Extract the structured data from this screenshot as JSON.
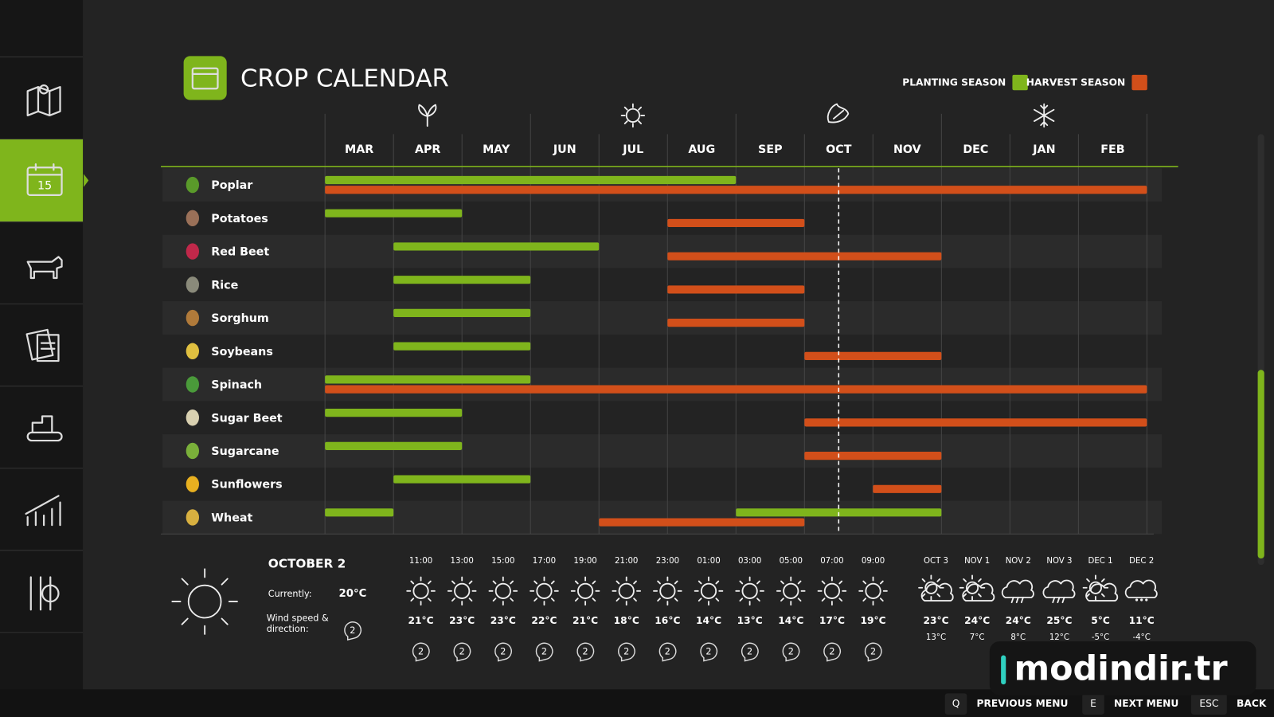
{
  "header": {
    "title": "CROP CALENDAR"
  },
  "legend": {
    "planting": {
      "label": "PLANTING SEASON",
      "color": "#7fb51c"
    },
    "harvest": {
      "label": "HARVEST SEASON",
      "color": "#d24f1a"
    }
  },
  "calendar": {
    "months": [
      "MAR",
      "APR",
      "MAY",
      "JUN",
      "JUL",
      "AUG",
      "SEP",
      "OCT",
      "NOV",
      "DEC",
      "JAN",
      "FEB"
    ],
    "today": 7.5,
    "crops": [
      {
        "name": "Poplar",
        "planting": [
          [
            0,
            5
          ]
        ],
        "harvest": [
          [
            0,
            11
          ]
        ]
      },
      {
        "name": "Potatoes",
        "planting": [
          [
            0,
            1
          ]
        ],
        "harvest": [
          [
            5,
            6
          ]
        ]
      },
      {
        "name": "Red Beet",
        "planting": [
          [
            1,
            3
          ]
        ],
        "harvest": [
          [
            5,
            8
          ]
        ]
      },
      {
        "name": "Rice",
        "planting": [
          [
            1,
            2
          ]
        ],
        "harvest": [
          [
            5,
            6
          ]
        ]
      },
      {
        "name": "Sorghum",
        "planting": [
          [
            1,
            2
          ]
        ],
        "harvest": [
          [
            5,
            6
          ]
        ]
      },
      {
        "name": "Soybeans",
        "planting": [
          [
            1,
            2
          ]
        ],
        "harvest": [
          [
            7,
            8
          ]
        ]
      },
      {
        "name": "Spinach",
        "planting": [
          [
            0,
            2
          ]
        ],
        "harvest": [
          [
            0,
            11
          ]
        ]
      },
      {
        "name": "Sugar Beet",
        "planting": [
          [
            0,
            1
          ]
        ],
        "harvest": [
          [
            7,
            11
          ]
        ]
      },
      {
        "name": "Sugarcane",
        "planting": [
          [
            0,
            1
          ]
        ],
        "harvest": [
          [
            7,
            8
          ]
        ]
      },
      {
        "name": "Sunflowers",
        "planting": [
          [
            1,
            2
          ]
        ],
        "harvest": [
          [
            8,
            8
          ]
        ]
      },
      {
        "name": "Wheat",
        "planting": [
          [
            0,
            0
          ],
          [
            6,
            8
          ]
        ],
        "harvest": [
          [
            4,
            6
          ]
        ]
      }
    ]
  },
  "weather": {
    "date": "OCTOBER 2",
    "current_label": "Currently:",
    "current_temp": "20°C",
    "wind_label": "Wind speed & direction:",
    "wind": "2",
    "hourly": [
      {
        "time": "11:00",
        "icon": "sunny",
        "temp": "21°C",
        "wind": "2"
      },
      {
        "time": "13:00",
        "icon": "sunny",
        "temp": "23°C",
        "wind": "2"
      },
      {
        "time": "15:00",
        "icon": "sunny",
        "temp": "23°C",
        "wind": "2"
      },
      {
        "time": "17:00",
        "icon": "sunny",
        "temp": "22°C",
        "wind": "2"
      },
      {
        "time": "19:00",
        "icon": "sunny",
        "temp": "21°C",
        "wind": "2"
      },
      {
        "time": "21:00",
        "icon": "sunny",
        "temp": "18°C",
        "wind": "2"
      },
      {
        "time": "23:00",
        "icon": "sunny",
        "temp": "16°C",
        "wind": "2"
      },
      {
        "time": "01:00",
        "icon": "sunny",
        "temp": "14°C",
        "wind": "2"
      },
      {
        "time": "03:00",
        "icon": "sunny",
        "temp": "13°C",
        "wind": "2"
      },
      {
        "time": "05:00",
        "icon": "sunny",
        "temp": "14°C",
        "wind": "2"
      },
      {
        "time": "07:00",
        "icon": "sunny",
        "temp": "17°C",
        "wind": "2"
      },
      {
        "time": "09:00",
        "icon": "sunny",
        "temp": "19°C",
        "wind": "2"
      }
    ],
    "daily": [
      {
        "date": "OCT 3",
        "icon": "partly-cloudy",
        "high": "23°C",
        "low": "13°C"
      },
      {
        "date": "NOV 1",
        "icon": "partly-cloudy",
        "high": "24°C",
        "low": "7°C"
      },
      {
        "date": "NOV 2",
        "icon": "rain",
        "high": "24°C",
        "low": "8°C"
      },
      {
        "date": "NOV 3",
        "icon": "rain",
        "high": "25°C",
        "low": "12°C"
      },
      {
        "date": "DEC 1",
        "icon": "partly-cloudy",
        "high": "5°C",
        "low": "-5°C"
      },
      {
        "date": "DEC 2",
        "icon": "snow",
        "high": "11°C",
        "low": "-4°C"
      }
    ]
  },
  "footer": [
    {
      "key": "Q",
      "label": "PREVIOUS MENU"
    },
    {
      "key": "E",
      "label": "NEXT MENU"
    },
    {
      "key": "ESC",
      "label": "BACK"
    }
  ],
  "watermark": "modindir.tr"
}
